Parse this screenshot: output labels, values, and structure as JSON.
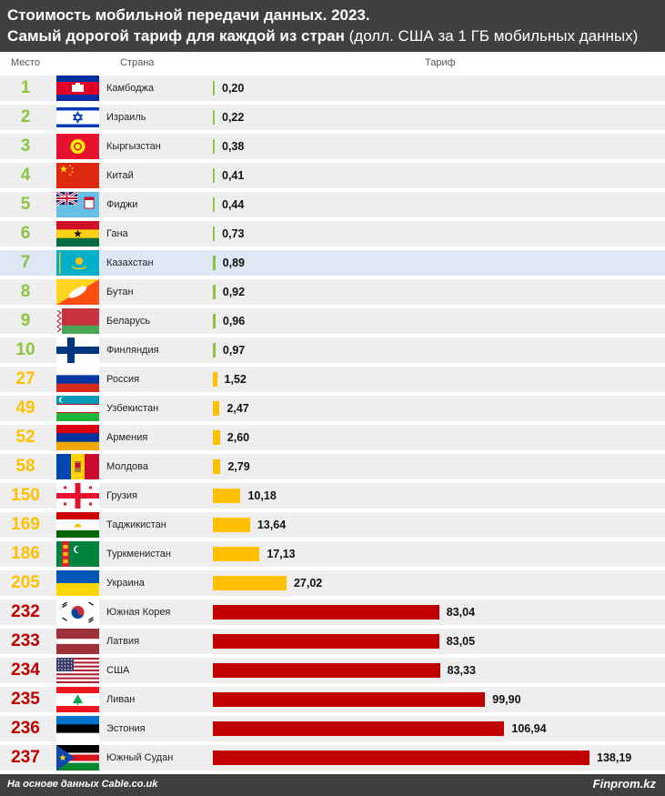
{
  "header": {
    "title_line1": "Стоимость мобильной передачи данных. 2023.",
    "title_line2_bold": "Самый дорогой тариф для каждой из стран",
    "title_line2_regular": " (долл. США за 1 ГБ мобильных данных)"
  },
  "columns": {
    "rank": "Место",
    "country": "Страна",
    "tariff": "Тариф"
  },
  "footer": {
    "source": "На основе данных Cable.co.uk",
    "brand": "Finprom.kz"
  },
  "colors": {
    "tier_low": "#8cc63f",
    "tier_mid": "#ffc000",
    "tier_high": "#c00000",
    "highlight_row": "#dde8f4",
    "header_bg": "#404040"
  },
  "highlighted_country": "Казахстан",
  "chart_data": {
    "type": "bar",
    "orientation": "horizontal",
    "categories": [
      "Камбоджа",
      "Израиль",
      "Кыргызстан",
      "Китай",
      "Фиджи",
      "Гана",
      "Казахстан",
      "Бутан",
      "Беларусь",
      "Финляндия",
      "Россия",
      "Узбекистан",
      "Армения",
      "Молдова",
      "Грузия",
      "Таджикистан",
      "Туркменистан",
      "Украина",
      "Южная Корея",
      "Латвия",
      "США",
      "Ливан",
      "Эстония",
      "Южный Судан"
    ],
    "ranks": [
      1,
      2,
      3,
      4,
      5,
      6,
      7,
      8,
      9,
      10,
      27,
      49,
      52,
      58,
      150,
      169,
      186,
      205,
      232,
      233,
      234,
      235,
      236,
      237
    ],
    "values": [
      0.2,
      0.22,
      0.38,
      0.41,
      0.44,
      0.73,
      0.89,
      0.92,
      0.96,
      0.97,
      1.52,
      2.47,
      2.6,
      2.79,
      10.18,
      13.64,
      17.13,
      27.02,
      83.04,
      83.05,
      83.33,
      99.9,
      106.94,
      138.19
    ],
    "labels": [
      "0,20",
      "0,22",
      "0,38",
      "0,41",
      "0,44",
      "0,73",
      "0,89",
      "0,92",
      "0,96",
      "0,97",
      "1,52",
      "2,47",
      "2,60",
      "2,79",
      "10,18",
      "13,64",
      "17,13",
      "27,02",
      "83,04",
      "83,05",
      "83,33",
      "99,90",
      "106,94",
      "138,19"
    ],
    "tiers": [
      "low",
      "low",
      "low",
      "low",
      "low",
      "low",
      "low",
      "low",
      "low",
      "low",
      "mid",
      "mid",
      "mid",
      "mid",
      "mid",
      "mid",
      "mid",
      "mid",
      "high",
      "high",
      "high",
      "high",
      "high",
      "high"
    ],
    "flags": [
      "cambodia",
      "israel",
      "kyrgyzstan",
      "china",
      "fiji",
      "ghana",
      "kazakhstan",
      "bhutan",
      "belarus",
      "finland",
      "russia",
      "uzbekistan",
      "armenia",
      "moldova",
      "georgia",
      "tajikistan",
      "turkmenistan",
      "ukraine",
      "south-korea",
      "latvia",
      "usa",
      "lebanon",
      "estonia",
      "south-sudan"
    ],
    "title": "Стоимость мобильной передачи данных. 2023.",
    "subtitle": "Самый дорогой тариф для каждой из стран (долл. США за 1 ГБ мобильных данных)",
    "xlabel": "Тариф",
    "ylabel": "Страна",
    "xlim": [
      0,
      138.19
    ],
    "grid": false,
    "legend": "none"
  }
}
